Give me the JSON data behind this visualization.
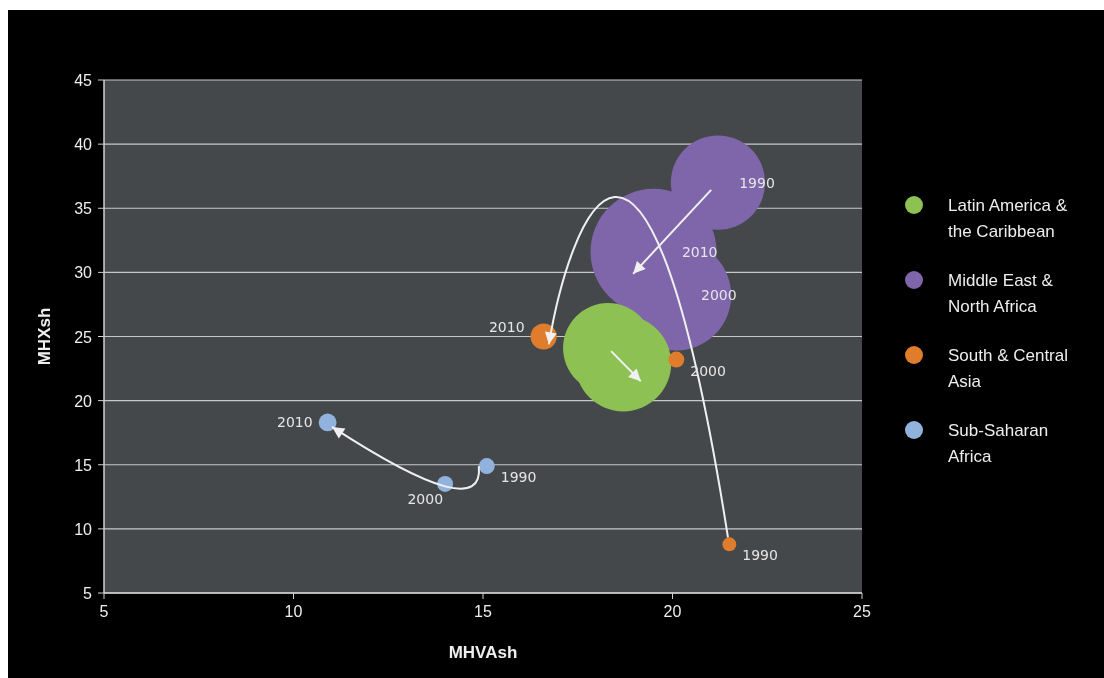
{
  "chart_data": {
    "type": "bubble",
    "xlabel": "MHVAsh",
    "ylabel": "MHXsh",
    "xlim": [
      5,
      25
    ],
    "xticks": [
      5,
      10,
      15,
      20,
      25
    ],
    "ylim": [
      5,
      45
    ],
    "yticks": [
      5,
      10,
      15,
      20,
      25,
      30,
      35,
      40,
      45
    ],
    "grid": "y",
    "legend": "right",
    "series": [
      {
        "name": "Latin America & the Caribbean",
        "color": "#8dc153",
        "x": [
          18.3,
          18.7
        ],
        "values": [
          24.1,
          22.9
        ],
        "sizes": [
          0.51,
          0.58
        ]
      },
      {
        "name": "Middle East & North Africa",
        "color": "#7f66aa",
        "x": [
          21.2,
          20.1,
          19.5
        ],
        "values": [
          37.0,
          28.2,
          31.6
        ],
        "sizes": [
          0.56,
          0.76,
          1
        ]
      },
      {
        "name": "South & Central Asia",
        "color": "#e07d2c",
        "x": [
          21.5,
          20.1,
          16.6
        ],
        "values": [
          8.8,
          23.2,
          25.0
        ],
        "sizes": [
          0.012,
          0.016,
          0.043
        ]
      },
      {
        "name": "Sub-Saharan Africa",
        "color": "#92b2de",
        "x": [
          15.1,
          14.0,
          10.9
        ],
        "values": [
          14.9,
          13.5,
          18.3
        ],
        "sizes": [
          0.016,
          0.016,
          0.02
        ]
      }
    ],
    "annotations": [
      {
        "text": "1990",
        "x": 21.2,
        "y": 37.0
      },
      {
        "text": "2000",
        "x": 20.1,
        "y": 28.2
      },
      {
        "text": "2010",
        "x": 19.5,
        "y": 31.6
      },
      {
        "text": "1990",
        "x": 21.5,
        "y": 8.8
      },
      {
        "text": "2000",
        "x": 20.1,
        "y": 23.2
      },
      {
        "text": "2010",
        "x": 16.6,
        "y": 25.0
      },
      {
        "text": "1990",
        "x": 15.1,
        "y": 14.9
      },
      {
        "text": "2000",
        "x": 14.0,
        "y": 13.5
      },
      {
        "text": "2010",
        "x": 10.9,
        "y": 18.3
      }
    ]
  }
}
